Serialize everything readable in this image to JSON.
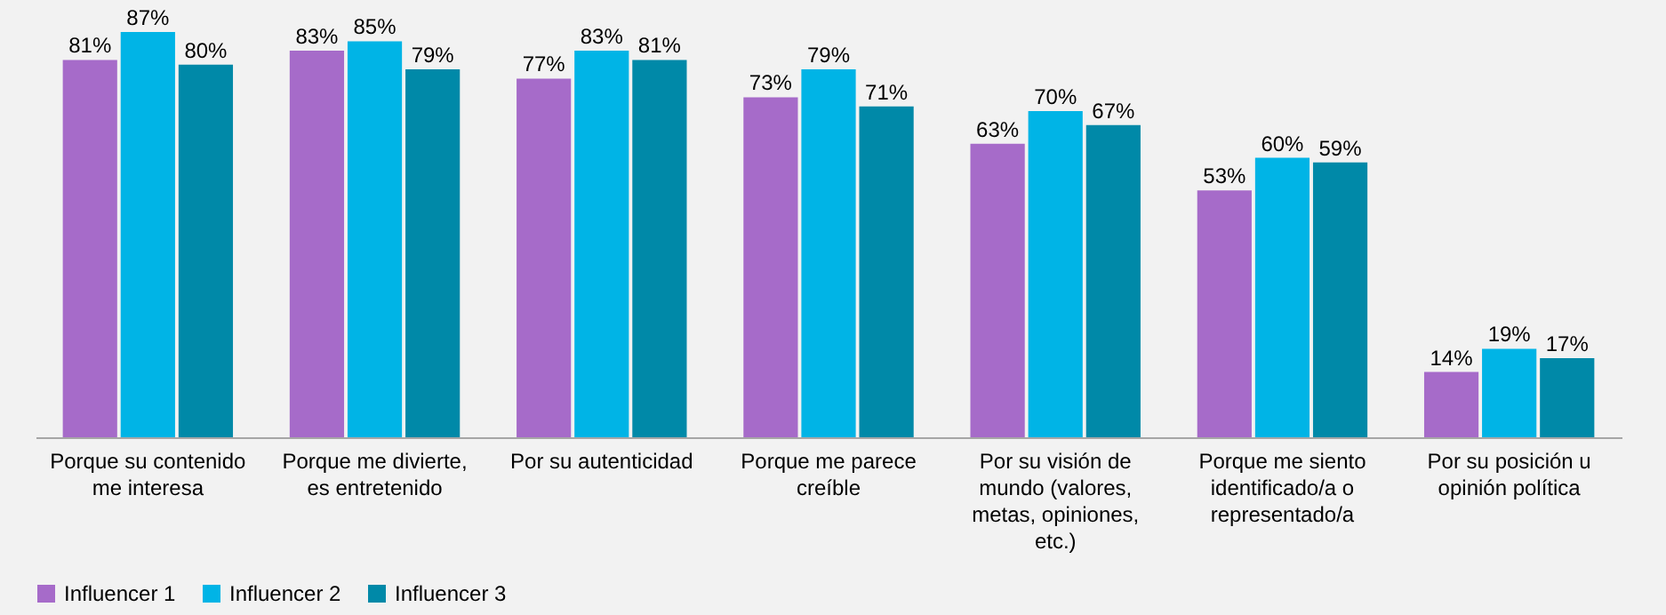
{
  "chart_data": {
    "type": "bar",
    "categories": [
      "Porque su contenido me interesa",
      "Porque me divierte, es entretenido",
      "Por su autenticidad",
      "Porque me parece creíble",
      "Por su visión de mundo (valores, metas, opiniones, etc.)",
      "Porque me siento identificado/a o representado/a",
      "Por su posición u opinión política"
    ],
    "series": [
      {
        "name": "Influencer 1",
        "color": "#a66bc9",
        "values": [
          81,
          83,
          77,
          73,
          63,
          53,
          14
        ],
        "value_labels": [
          "81%",
          "83%",
          "77%",
          "73%",
          "63%",
          "53%",
          "14%"
        ]
      },
      {
        "name": "Influencer 2",
        "color": "#00b4e6",
        "values": [
          87,
          85,
          83,
          79,
          70,
          60,
          19
        ],
        "value_labels": [
          "87%",
          "85%",
          "83%",
          "79%",
          "70%",
          "60%",
          "19%"
        ]
      },
      {
        "name": "Influencer 3",
        "color": "#0089a8",
        "values": [
          80,
          79,
          81,
          71,
          67,
          59,
          17
        ],
        "value_labels": [
          "80%",
          "79%",
          "81%",
          "71%",
          "67%",
          "59%",
          "17%"
        ]
      }
    ],
    "legend": "bottom",
    "grid": false
  }
}
